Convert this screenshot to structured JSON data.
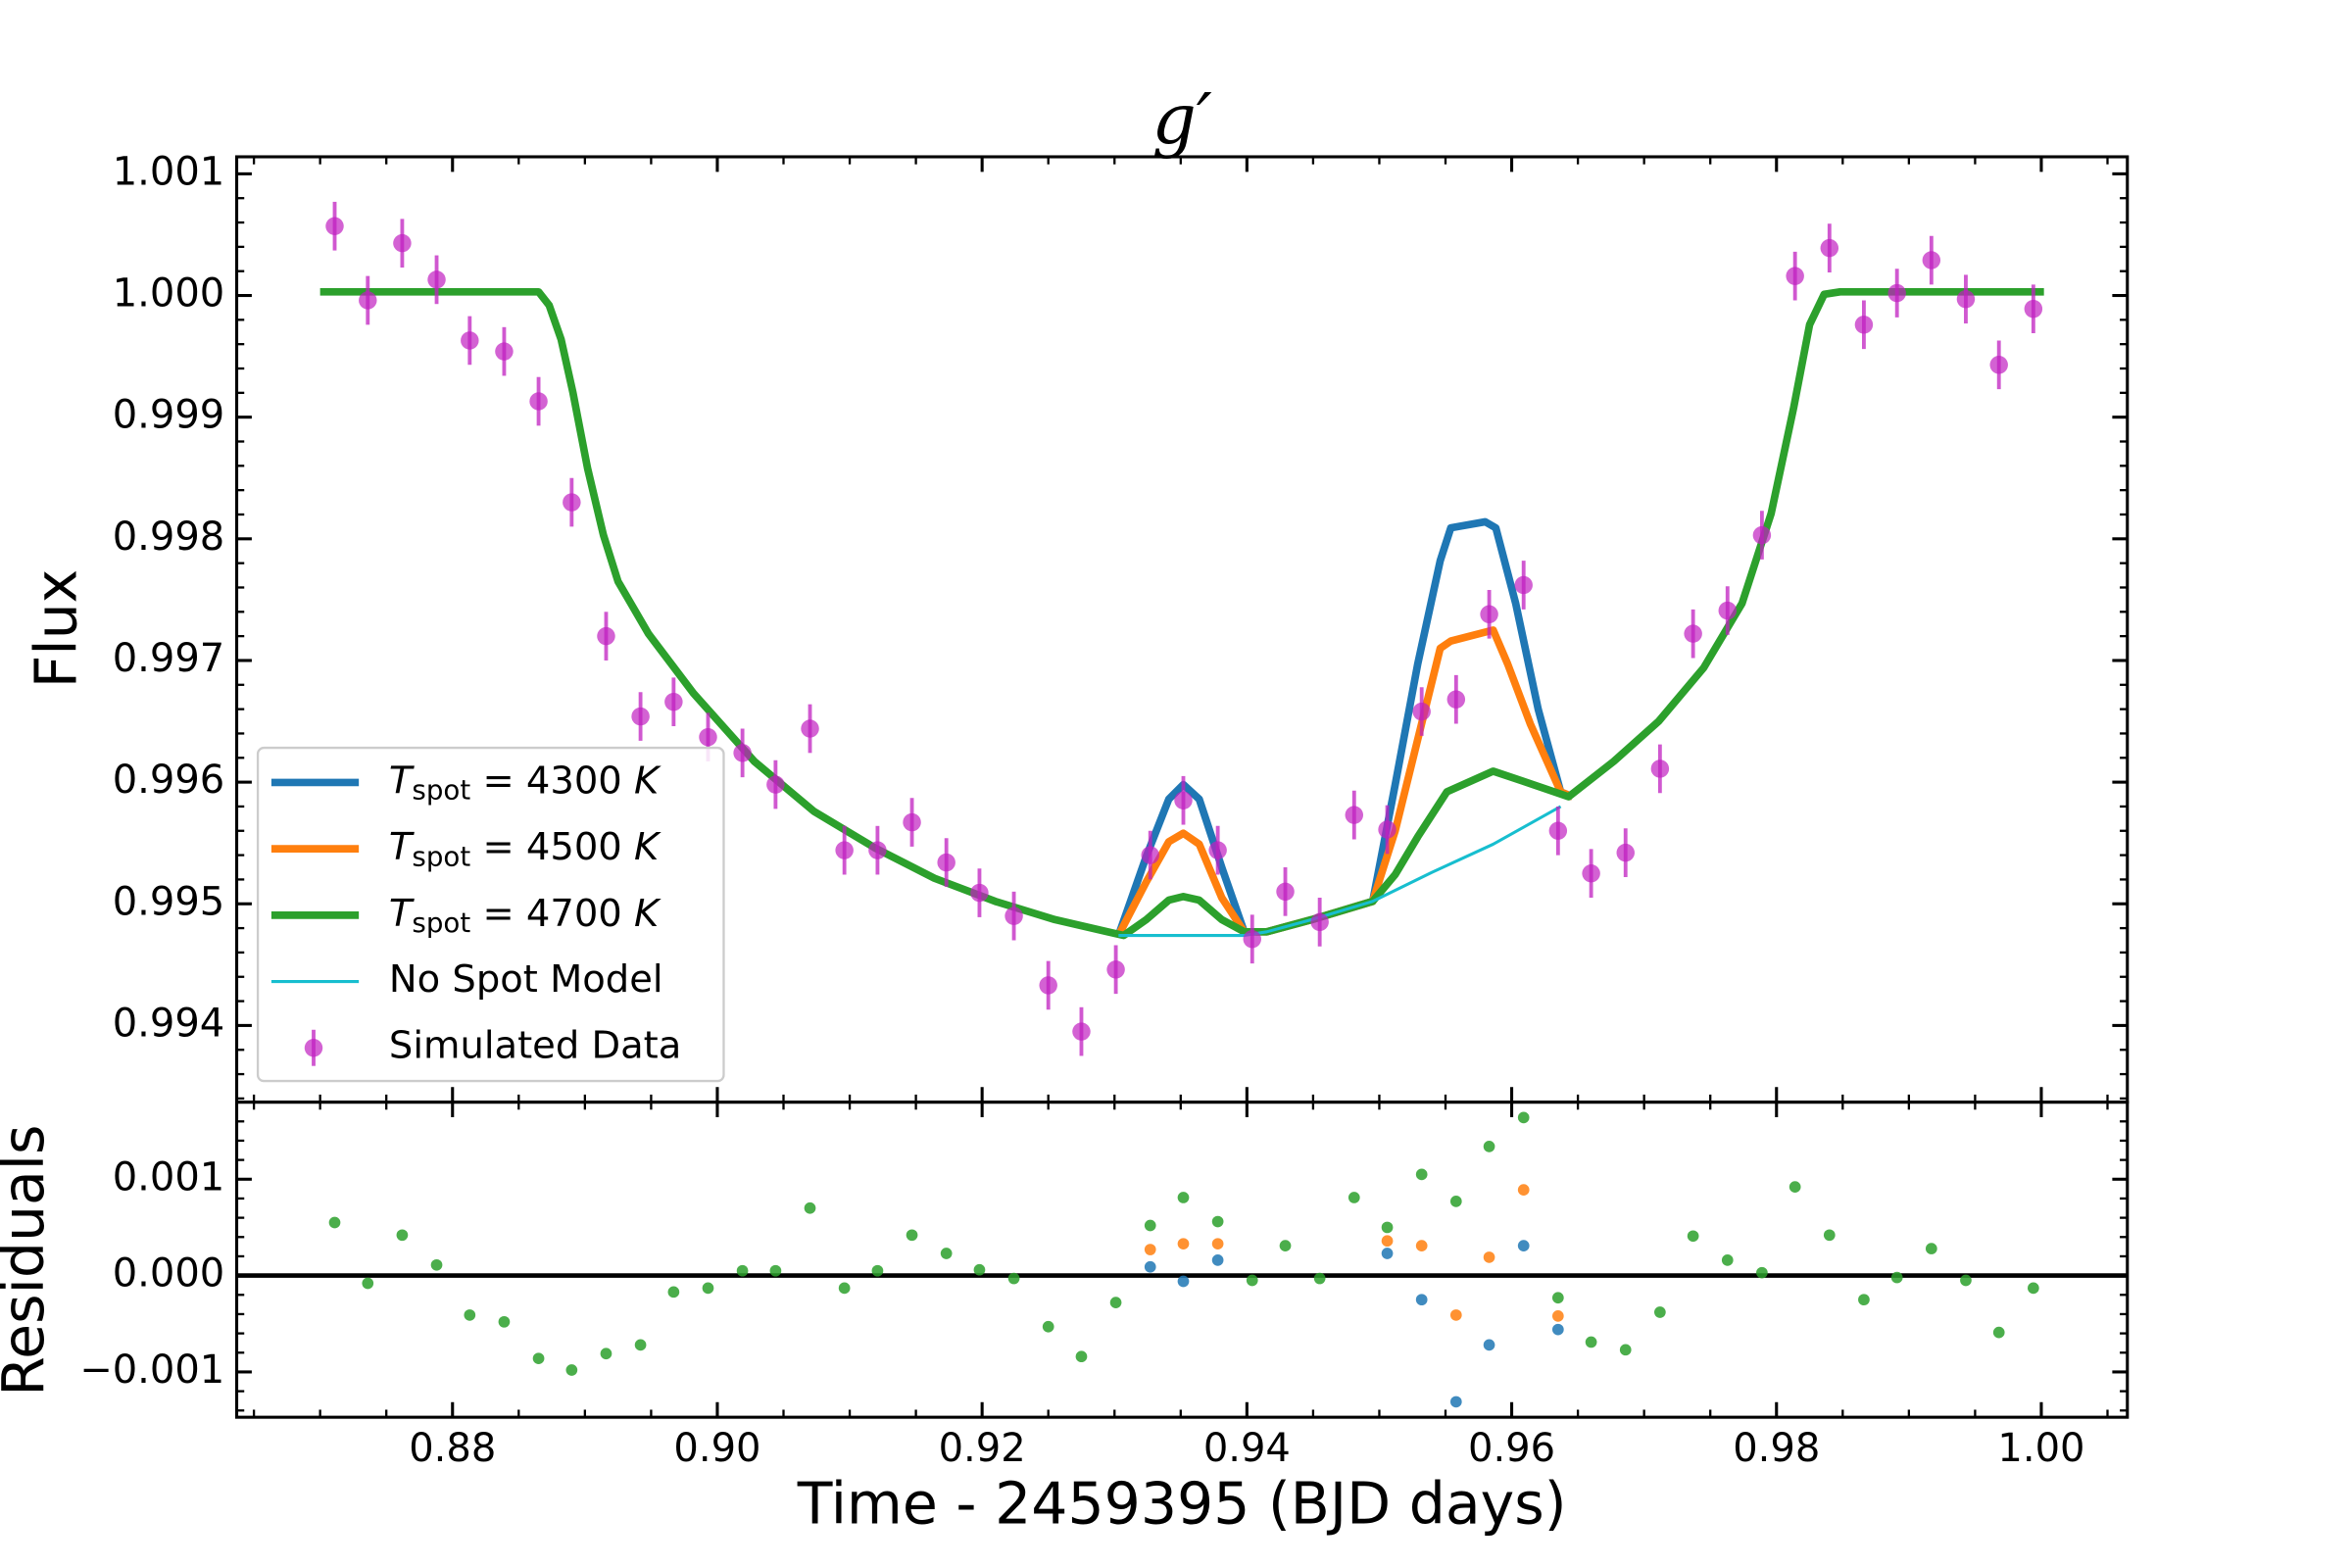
{
  "chart_data": [
    {
      "type": "line",
      "title": "g′",
      "ylabel": "Flux",
      "xlim": [
        0.8637,
        1.0065
      ],
      "ylim": [
        0.99337,
        1.00114
      ],
      "yticks": [
        0.994,
        0.995,
        0.996,
        0.997,
        0.998,
        0.999,
        {
          "value": 1,
          "label": "1.000"
        },
        1.001
      ],
      "legend": "lower left",
      "series": [
        {
          "name": "Tspot = 4300 K",
          "color": "#1f77b4",
          "math": true,
          "x": [
            0.9303,
            0.9324,
            0.9341,
            0.9352,
            0.9364,
            0.9381,
            0.9398,
            0.9415,
            0.9449,
            0.9495,
            0.9512,
            0.9529,
            0.9546,
            0.9554,
            0.958,
            0.9588,
            0.9603,
            0.962,
            0.9637,
            0.9646
          ],
          "values": [
            0.99474,
            0.99539,
            0.99586,
            0.99598,
            0.99586,
            0.9953,
            0.99477,
            0.99477,
            0.99487,
            0.99502,
            0.99598,
            0.99697,
            0.99782,
            0.99809,
            0.99814,
            0.99809,
            0.99747,
            0.9966,
            0.99592,
            0.99588
          ]
        },
        {
          "name": "Tspot = 4500 K",
          "color": "#ff7f0e",
          "math": true,
          "x": [
            0.9303,
            0.9324,
            0.9341,
            0.9352,
            0.9364,
            0.9381,
            0.9398,
            0.9415,
            0.9449,
            0.9495,
            0.9512,
            0.9529,
            0.9546,
            0.9554,
            0.9586,
            0.9597,
            0.9614,
            0.9637,
            0.9646
          ],
          "values": [
            0.99474,
            0.99518,
            0.99551,
            0.99558,
            0.99549,
            0.99505,
            0.99477,
            0.99477,
            0.99487,
            0.99502,
            0.9956,
            0.99635,
            0.9971,
            0.99716,
            0.99725,
            0.99697,
            0.99648,
            0.99592,
            0.99588
          ]
        },
        {
          "name": "Tspot = 4700 K",
          "color": "#2ca02c",
          "math": true,
          "x": [
            0.87,
            0.8865,
            0.8873,
            0.8882,
            0.8891,
            0.8902,
            0.8914,
            0.8925,
            0.8948,
            0.8982,
            0.9028,
            0.9073,
            0.9119,
            0.9164,
            0.921,
            0.9255,
            0.9295,
            0.9307,
            0.9324,
            0.9341,
            0.9352,
            0.9364,
            0.9381,
            0.9398,
            0.9415,
            0.9449,
            0.9495,
            0.9512,
            0.9529,
            0.9551,
            0.9586,
            0.9608,
            0.9643,
            0.9677,
            0.9711,
            0.9745,
            0.9774,
            0.9796,
            0.9813,
            0.9825,
            0.9836,
            0.9848,
            1.0002
          ],
          "values": [
            1.00003,
            1.00003,
            0.99992,
            0.99964,
            0.9992,
            0.99858,
            0.99803,
            0.99765,
            0.99722,
            0.99673,
            0.99617,
            0.99576,
            0.99546,
            0.99521,
            0.99502,
            0.99487,
            0.99477,
            0.99474,
            0.99487,
            0.99503,
            0.99506,
            0.99503,
            0.99487,
            0.99477,
            0.99477,
            0.99487,
            0.99502,
            0.99524,
            0.99555,
            0.99592,
            0.99609,
            0.99601,
            0.99588,
            0.99617,
            0.9965,
            0.99694,
            0.99747,
            0.99821,
            0.99908,
            0.99976,
            1.00001,
            1.00003,
            1.00003
          ]
        },
        {
          "name": "No Spot Model",
          "color": "#17becf",
          "x": [
            0.9303,
            0.9398,
            0.9415,
            0.9449,
            0.9495,
            0.954,
            0.9586,
            0.9637
          ],
          "values": [
            0.99474,
            0.99474,
            0.99477,
            0.99487,
            0.99502,
            0.99526,
            0.99549,
            0.9958
          ]
        },
        {
          "name": "Simulated Data",
          "color": "#c020c0",
          "marker": "errorbar",
          "error": 0.0002,
          "x": [
            0.8711,
            0.8736,
            0.8762,
            0.8788,
            0.8813,
            0.8839,
            0.8865,
            0.889,
            0.8916,
            0.8942,
            0.8967,
            0.8993,
            0.9019,
            0.9044,
            0.907,
            0.9096,
            0.9121,
            0.9147,
            0.9173,
            0.9198,
            0.9224,
            0.925,
            0.9275,
            0.9301,
            0.9327,
            0.9352,
            0.9378,
            0.9404,
            0.9429,
            0.9455,
            0.9481,
            0.9506,
            0.9532,
            0.9558,
            0.9583,
            0.9609,
            0.9635,
            0.966,
            0.9686,
            0.9712,
            0.9737,
            0.9763,
            0.9789,
            0.9814,
            0.984,
            0.9866,
            0.9891,
            0.9917,
            0.9943,
            0.9968,
            0.9994
          ],
          "values": [
            1.00057,
            0.99996,
            1.00043,
            1.00013,
            0.99963,
            0.99954,
            0.99913,
            0.9983,
            0.9972,
            0.99654,
            0.99666,
            0.99637,
            0.99624,
            0.99598,
            0.99644,
            0.99544,
            0.99544,
            0.99567,
            0.99534,
            0.99509,
            0.9949,
            0.99433,
            0.99395,
            0.99446,
            0.9954,
            0.99585,
            0.99544,
            0.99471,
            0.9951,
            0.99485,
            0.99573,
            0.99561,
            0.99658,
            0.99668,
            0.99738,
            0.99762,
            0.9956,
            0.99525,
            0.99542,
            0.99611,
            0.99722,
            0.99741,
            0.99803,
            1.00016,
            1.00039,
            0.99976,
            1.00002,
            1.00029,
            0.99997,
            0.99943,
            0.99989
          ]
        }
      ]
    },
    {
      "type": "scatter",
      "ylabel": "Residuals",
      "xlabel": "Time - 2459395 (BJD days)",
      "xlim": [
        0.8637,
        1.0065
      ],
      "ylim": [
        -0.00147,
        0.0018
      ],
      "xticks": [
        0.88,
        {
          "value": 0.9,
          "label": "0.90"
        },
        0.92,
        0.94,
        0.96,
        0.98,
        {
          "value": 1,
          "label": "1.00"
        }
      ],
      "yticks": [
        {
          "value": -0.001,
          "label": "−0.001"
        },
        {
          "value": 0,
          "label": "0.000"
        },
        0.001
      ],
      "hline": 0,
      "series": [
        {
          "color": "#1f77b4",
          "x": [
            0.9327,
            0.9352,
            0.9378,
            0.9506,
            0.9532,
            0.9558,
            0.9583,
            0.9609,
            0.9635
          ],
          "values": [
            9e-05,
            -6e-05,
            0.00016,
            0.00023,
            -0.00025,
            -0.00131,
            -0.00072,
            0.00031,
            -0.00056
          ]
        },
        {
          "color": "#ff7f0e",
          "x": [
            0.9327,
            0.9352,
            0.9378,
            0.9506,
            0.9532,
            0.9558,
            0.9583,
            0.9609,
            0.9635
          ],
          "values": [
            0.00027,
            0.00033,
            0.00033,
            0.00036,
            0.00031,
            -0.00041,
            0.00019,
            0.00089,
            -0.00042
          ]
        },
        {
          "color": "#2ca02c",
          "x": [
            0.8711,
            0.8736,
            0.8762,
            0.8788,
            0.8813,
            0.8839,
            0.8865,
            0.889,
            0.8916,
            0.8942,
            0.8967,
            0.8993,
            0.9019,
            0.9044,
            0.907,
            0.9096,
            0.9121,
            0.9147,
            0.9173,
            0.9198,
            0.9224,
            0.925,
            0.9275,
            0.9301,
            0.9327,
            0.9352,
            0.9378,
            0.9404,
            0.9429,
            0.9455,
            0.9481,
            0.9506,
            0.9532,
            0.9558,
            0.9583,
            0.9609,
            0.9635,
            0.966,
            0.9686,
            0.9712,
            0.9737,
            0.9763,
            0.9789,
            0.9814,
            0.984,
            0.9866,
            0.9891,
            0.9917,
            0.9943,
            0.9968,
            0.9994
          ],
          "values": [
            0.00055,
            -8e-05,
            0.00042,
            0.00011,
            -0.00041,
            -0.00048,
            -0.00086,
            -0.00098,
            -0.00081,
            -0.00072,
            -0.00017,
            -0.00013,
            5e-05,
            5e-05,
            0.0007,
            -0.00013,
            5e-05,
            0.00042,
            0.00023,
            6e-05,
            -3e-05,
            -0.00053,
            -0.00084,
            -0.00028,
            0.00052,
            0.00081,
            0.00056,
            -5e-05,
            0.00031,
            -3e-05,
            0.00081,
            0.0005,
            0.00105,
            0.00077,
            0.00134,
            0.00164,
            -0.00023,
            -0.00069,
            -0.00077,
            -0.00038,
            0.00041,
            0.00016,
            3e-05,
            0.00092,
            0.00042,
            -0.00025,
            -2e-05,
            0.00028,
            -5e-05,
            -0.00059,
            -0.00013
          ]
        }
      ]
    }
  ]
}
